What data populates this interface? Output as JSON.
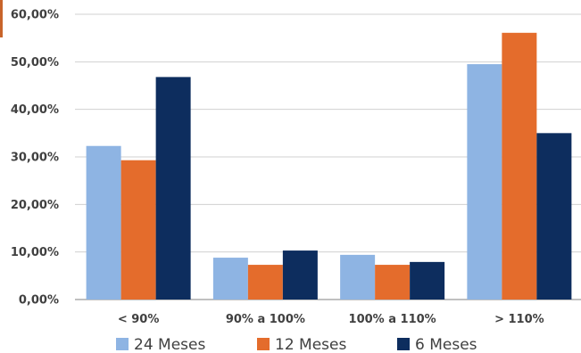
{
  "chart_data": {
    "type": "bar",
    "title": "",
    "xlabel": "",
    "ylabel": "",
    "categories": [
      "< 90%",
      "90% a 100%",
      "100% a 110%",
      "> 110%"
    ],
    "series": [
      {
        "name": "24 Meses",
        "color": "#8EB4E3",
        "values": [
          32.3,
          8.8,
          9.4,
          49.5
        ]
      },
      {
        "name": "12 Meses",
        "color": "#E46C2C",
        "values": [
          29.3,
          7.3,
          7.3,
          56.1
        ]
      },
      {
        "name": "6 Meses",
        "color": "#0D2D5E",
        "values": [
          46.8,
          10.3,
          7.9,
          35.0
        ]
      }
    ],
    "yticks": [
      "0,00%",
      "10,00%",
      "20,00%",
      "30,00%",
      "40,00%",
      "50,00%",
      "60,00%"
    ],
    "ylim": [
      0,
      60
    ],
    "grid": true,
    "legend_position": "bottom"
  },
  "colors": {
    "accent_corner": "#C8642A"
  }
}
